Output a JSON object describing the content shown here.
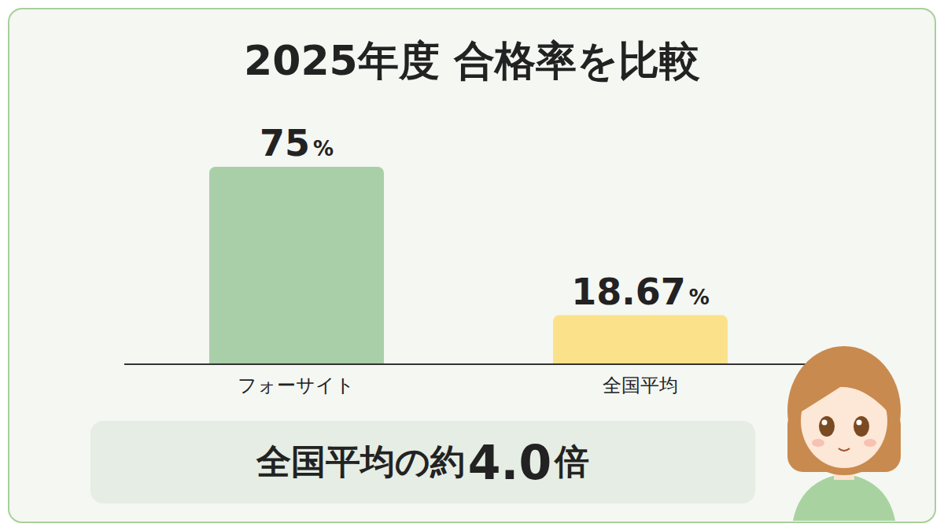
{
  "chart_data": {
    "type": "bar",
    "title": "2025年度 合格率を比較",
    "categories": [
      "フォーサイト",
      "全国平均"
    ],
    "values": [
      75,
      18.67
    ],
    "value_labels": [
      "75%",
      "18.67%"
    ],
    "colors": [
      "#a9cfa9",
      "#fbe28a"
    ],
    "ylim": [
      0,
      75
    ],
    "tick_labels": "x",
    "grid": false,
    "data_labels": true,
    "annotation": "全国平均の約4.0倍"
  }
}
